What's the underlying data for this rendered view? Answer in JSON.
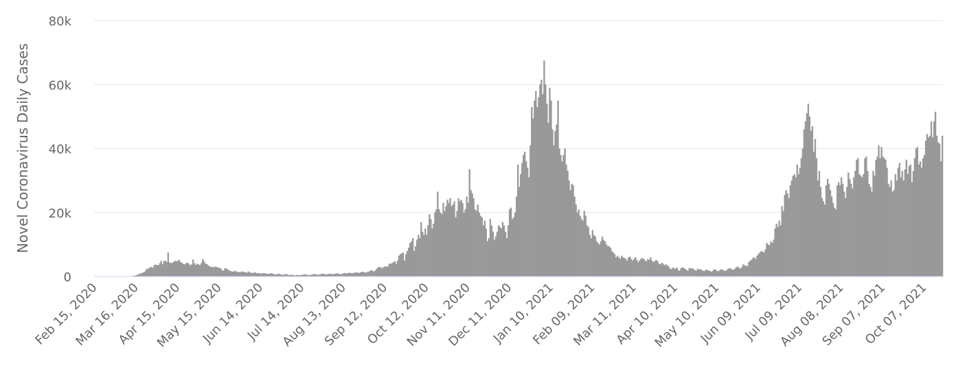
{
  "chart_data": {
    "type": "bar",
    "y_label": "Novel Coronavirus Daily Cases",
    "color": "#999999",
    "grid": true,
    "ylim": [
      0,
      80000
    ],
    "yticks": [
      0,
      {
        "value": 20000,
        "label": "20k"
      },
      {
        "value": 40000,
        "label": "40k"
      },
      {
        "value": 60000,
        "label": "60k"
      },
      {
        "value": 80000,
        "label": "80k"
      }
    ],
    "categories": [
      "Feb 15, 2020",
      null,
      null,
      null,
      null,
      null,
      null,
      null,
      null,
      null,
      null,
      null,
      null,
      null,
      null,
      null,
      null,
      null,
      null,
      null,
      null,
      null,
      null,
      null,
      null,
      null,
      null,
      null,
      null,
      null,
      "Mar 16, 2020",
      null,
      null,
      null,
      null,
      null,
      null,
      null,
      null,
      null,
      null,
      null,
      null,
      null,
      null,
      null,
      null,
      null,
      null,
      null,
      null,
      null,
      null,
      null,
      null,
      null,
      null,
      null,
      null,
      null,
      "Apr 15, 2020",
      null,
      null,
      null,
      null,
      null,
      null,
      null,
      null,
      null,
      null,
      null,
      null,
      null,
      null,
      null,
      null,
      null,
      null,
      null,
      null,
      null,
      null,
      null,
      null,
      null,
      null,
      null,
      null,
      null,
      "May 15, 2020",
      null,
      null,
      null,
      null,
      null,
      null,
      null,
      null,
      null,
      null,
      null,
      null,
      null,
      null,
      null,
      null,
      null,
      null,
      null,
      null,
      null,
      null,
      null,
      null,
      null,
      null,
      null,
      null,
      null,
      "Jun 14, 2020",
      null,
      null,
      null,
      null,
      null,
      null,
      null,
      null,
      null,
      null,
      null,
      null,
      null,
      null,
      null,
      null,
      null,
      null,
      null,
      null,
      null,
      null,
      null,
      null,
      null,
      null,
      null,
      null,
      null,
      "Jul 14, 2020",
      null,
      null,
      null,
      null,
      null,
      null,
      null,
      null,
      null,
      null,
      null,
      null,
      null,
      null,
      null,
      null,
      null,
      null,
      null,
      null,
      null,
      null,
      null,
      null,
      null,
      null,
      null,
      null,
      null,
      "Aug 13, 2020",
      null,
      null,
      null,
      null,
      null,
      null,
      null,
      null,
      null,
      null,
      null,
      null,
      null,
      null,
      null,
      null,
      null,
      null,
      null,
      null,
      null,
      null,
      null,
      null,
      null,
      null,
      null,
      null,
      null,
      "Sep 12, 2020",
      null,
      null,
      null,
      null,
      null,
      null,
      null,
      null,
      null,
      null,
      null,
      null,
      null,
      null,
      null,
      null,
      null,
      null,
      null,
      null,
      null,
      null,
      null,
      null,
      null,
      null,
      null,
      null,
      null,
      "Oct 12, 2020",
      null,
      null,
      null,
      null,
      null,
      null,
      null,
      null,
      null,
      null,
      null,
      null,
      null,
      null,
      null,
      null,
      null,
      null,
      null,
      null,
      null,
      null,
      null,
      null,
      null,
      null,
      null,
      null,
      null,
      "Nov 11, 2020",
      null,
      null,
      null,
      null,
      null,
      null,
      null,
      null,
      null,
      null,
      null,
      null,
      null,
      null,
      null,
      null,
      null,
      null,
      null,
      null,
      null,
      null,
      null,
      null,
      null,
      null,
      null,
      null,
      null,
      "Dec 11, 2020",
      null,
      null,
      null,
      null,
      null,
      null,
      null,
      null,
      null,
      null,
      null,
      null,
      null,
      null,
      null,
      null,
      null,
      null,
      null,
      null,
      null,
      null,
      null,
      null,
      null,
      null,
      null,
      null,
      null,
      "Jan 10, 2021",
      null,
      null,
      null,
      null,
      null,
      null,
      null,
      null,
      null,
      null,
      null,
      null,
      null,
      null,
      null,
      null,
      null,
      null,
      null,
      null,
      null,
      null,
      null,
      null,
      null,
      null,
      null,
      null,
      null,
      "Feb 09, 2021",
      null,
      null,
      null,
      null,
      null,
      null,
      null,
      null,
      null,
      null,
      null,
      null,
      null,
      null,
      null,
      null,
      null,
      null,
      null,
      null,
      null,
      null,
      null,
      null,
      null,
      null,
      null,
      null,
      null,
      "Mar 11, 2021",
      null,
      null,
      null,
      null,
      null,
      null,
      null,
      null,
      null,
      null,
      null,
      null,
      null,
      null,
      null,
      null,
      null,
      null,
      null,
      null,
      null,
      null,
      null,
      null,
      null,
      null,
      null,
      null,
      null,
      "Apr 10, 2021",
      null,
      null,
      null,
      null,
      null,
      null,
      null,
      null,
      null,
      null,
      null,
      null,
      null,
      null,
      null,
      null,
      null,
      null,
      null,
      null,
      null,
      null,
      null,
      null,
      null,
      null,
      null,
      null,
      null,
      "May 10, 2021",
      null,
      null,
      null,
      null,
      null,
      null,
      null,
      null,
      null,
      null,
      null,
      null,
      null,
      null,
      null,
      null,
      null,
      null,
      null,
      null,
      null,
      null,
      null,
      null,
      null,
      null,
      null,
      null,
      null,
      "Jun 09, 2021",
      null,
      null,
      null,
      null,
      null,
      null,
      null,
      null,
      null,
      null,
      null,
      null,
      null,
      null,
      null,
      null,
      null,
      null,
      null,
      null,
      null,
      null,
      null,
      null,
      null,
      null,
      null,
      null,
      null,
      "Jul 09, 2021",
      null,
      null,
      null,
      null,
      null,
      null,
      null,
      null,
      null,
      null,
      null,
      null,
      null,
      null,
      null,
      null,
      null,
      null,
      null,
      null,
      null,
      null,
      null,
      null,
      null,
      null,
      null,
      null,
      null,
      "Aug 08, 2021",
      null,
      null,
      null,
      null,
      null,
      null,
      null,
      null,
      null,
      null,
      null,
      null,
      null,
      null,
      null,
      null,
      null,
      null,
      null,
      null,
      null,
      null,
      null,
      null,
      null,
      null,
      null,
      null,
      null,
      "Sep 07, 2021",
      null,
      null,
      null,
      null,
      null,
      null,
      null,
      null,
      null,
      null,
      null,
      null,
      null,
      null,
      null,
      null,
      null,
      null,
      null,
      null,
      null,
      null,
      null,
      null,
      null,
      null,
      null,
      null,
      null,
      "Oct 07, 2021",
      null,
      null,
      null,
      null,
      null,
      null,
      null,
      null,
      null,
      null,
      null,
      null,
      null
    ],
    "values": [
      0,
      0,
      0,
      0,
      0,
      0,
      0,
      0,
      0,
      0,
      0,
      0,
      0,
      0,
      0,
      0,
      0,
      0,
      0,
      0,
      0,
      0,
      0,
      0,
      0,
      50,
      100,
      150,
      200,
      300,
      400,
      600,
      700,
      1000,
      1000,
      1300,
      1500,
      2100,
      2500,
      2500,
      2900,
      3000,
      2700,
      3600,
      3700,
      3600,
      3500,
      4200,
      4900,
      3800,
      4800,
      5000,
      4500,
      7500,
      4400,
      4200,
      4300,
      4600,
      4900,
      4800,
      4900,
      5200,
      4500,
      4300,
      3900,
      3800,
      4200,
      4300,
      4000,
      3500,
      3800,
      5300,
      4200,
      3600,
      4000,
      3800,
      3600,
      4200,
      5400,
      4800,
      4000,
      3900,
      3500,
      3200,
      3000,
      3000,
      2900,
      3100,
      3000,
      2800,
      2700,
      2600,
      2000,
      1800,
      2500,
      2600,
      2200,
      2000,
      1700,
      1600,
      1500,
      1800,
      1600,
      1500,
      1400,
      1300,
      1600,
      1500,
      1400,
      1300,
      1200,
      1600,
      1300,
      1200,
      1100,
      1200,
      1300,
      1000,
      1100,
      1000,
      1000,
      900,
      1100,
      1000,
      900,
      800,
      900,
      1000,
      1000,
      800,
      700,
      600,
      800,
      900,
      700,
      600,
      500,
      600,
      800,
      700,
      500,
      400,
      600,
      500,
      400,
      300,
      500,
      500,
      400,
      500,
      500,
      600,
      700,
      600,
      500,
      400,
      500,
      600,
      700,
      800,
      700,
      500,
      600,
      700,
      800,
      900,
      800,
      600,
      700,
      800,
      900,
      800,
      700,
      800,
      900,
      1000,
      900,
      800,
      700,
      900,
      1000,
      1100,
      900,
      1000,
      1200,
      1100,
      1000,
      1100,
      1200,
      1300,
      1200,
      1100,
      1300,
      1400,
      1500,
      1300,
      1200,
      1400,
      1500,
      1800,
      2000,
      1700,
      1600,
      2000,
      2500,
      2900,
      3000,
      2800,
      2600,
      3000,
      3200,
      3000,
      3300,
      4000,
      4000,
      4200,
      4500,
      4800,
      4000,
      5000,
      6500,
      7000,
      7200,
      7500,
      5000,
      7000,
      8000,
      9000,
      10500,
      11000,
      12000,
      8000,
      9500,
      11500,
      13000,
      12000,
      17000,
      14000,
      13000,
      15000,
      13000,
      16000,
      19500,
      18000,
      15000,
      16500,
      20000,
      21000,
      26500,
      21000,
      20000,
      19500,
      23000,
      20500,
      22000,
      24000,
      23000,
      24500,
      22000,
      22500,
      23500,
      18500,
      20500,
      24500,
      23500,
      24000,
      23000,
      20000,
      21000,
      25000,
      23000,
      33500,
      27000,
      26000,
      24500,
      21000,
      20500,
      22500,
      20000,
      19000,
      18500,
      16000,
      17500,
      15000,
      11000,
      12000,
      18000,
      16000,
      14000,
      11500,
      12500,
      14000,
      16000,
      15500,
      15000,
      17000,
      16000,
      14000,
      12000,
      16000,
      21000,
      21500,
      18000,
      18500,
      20000,
      25000,
      35000,
      28000,
      32000,
      35500,
      38000,
      39000,
      36000,
      34000,
      31000,
      41000,
      53000,
      49500,
      55000,
      58000,
      53000,
      56000,
      60000,
      61500,
      57000,
      67500,
      60000,
      54000,
      48000,
      59000,
      55000,
      46000,
      41000,
      45500,
      47500,
      55000,
      40000,
      38000,
      36000,
      38000,
      40000,
      35000,
      33000,
      30000,
      27000,
      29000,
      28500,
      25000,
      22500,
      20000,
      21000,
      19000,
      18000,
      17500,
      20500,
      19000,
      16000,
      15500,
      13000,
      12000,
      14500,
      13000,
      12500,
      11000,
      10500,
      10000,
      11000,
      12500,
      11500,
      11000,
      10000,
      9500,
      9500,
      9000,
      8000,
      7500,
      7000,
      6000,
      6500,
      6000,
      5500,
      6500,
      6000,
      5800,
      5500,
      5000,
      6000,
      6200,
      5500,
      5000,
      5500,
      6000,
      5200,
      4500,
      5000,
      5500,
      5800,
      5500,
      5000,
      4800,
      5500,
      5200,
      6000,
      5000,
      4500,
      4800,
      5200,
      4800,
      4000,
      3800,
      4300,
      4000,
      3500,
      3800,
      3500,
      3200,
      2500,
      2300,
      2800,
      2500,
      2500,
      2800,
      2000,
      1800,
      2600,
      2900,
      2600,
      2400,
      2000,
      1800,
      2700,
      2500,
      2600,
      2300,
      2000,
      1800,
      2400,
      2200,
      2300,
      2000,
      1800,
      1700,
      2200,
      2000,
      1900,
      1700,
      1500,
      1800,
      2300,
      2100,
      1800,
      1600,
      2000,
      2300,
      2100,
      1900,
      1700,
      2000,
      2400,
      2600,
      2500,
      2200,
      2100,
      2500,
      2900,
      3100,
      2700,
      2500,
      3000,
      3800,
      3500,
      3400,
      3200,
      4500,
      5000,
      5200,
      5800,
      6000,
      5500,
      6500,
      7000,
      7500,
      8000,
      7800,
      7500,
      8500,
      10500,
      10000,
      9800,
      11000,
      10500,
      11500,
      15000,
      16500,
      15500,
      17500,
      16000,
      22000,
      20500,
      25500,
      27000,
      26000,
      24500,
      28500,
      30000,
      31500,
      32000,
      31000,
      35000,
      32000,
      34000,
      37000,
      40000,
      46000,
      48500,
      51000,
      54000,
      50000,
      45500,
      47000,
      39000,
      43000,
      37000,
      30000,
      33000,
      28000,
      24500,
      23500,
      22500,
      28500,
      30500,
      29000,
      27000,
      25000,
      23000,
      21500,
      21000,
      28500,
      29500,
      28500,
      31000,
      29000,
      26500,
      24500,
      28000,
      32500,
      30500,
      29000,
      27500,
      31000,
      33000,
      36500,
      37000,
      32000,
      31500,
      31000,
      32000,
      37000,
      37500,
      33000,
      29000,
      28000,
      26500,
      33000,
      31500,
      36500,
      37500,
      41000,
      37000,
      40500,
      37500,
      37000,
      36500,
      34000,
      29000,
      28000,
      30000,
      26500,
      27000,
      32000,
      30000,
      34000,
      35500,
      31000,
      33000,
      30000,
      33500,
      36500,
      32000,
      34500,
      35000,
      29500,
      33000,
      37000,
      40000,
      40500,
      35000,
      36000,
      34000,
      37000,
      38000,
      42500,
      44500,
      43500,
      44000,
      48500,
      43500,
      48500,
      51500,
      44000,
      42000,
      41500,
      36000,
      44000
    ]
  }
}
